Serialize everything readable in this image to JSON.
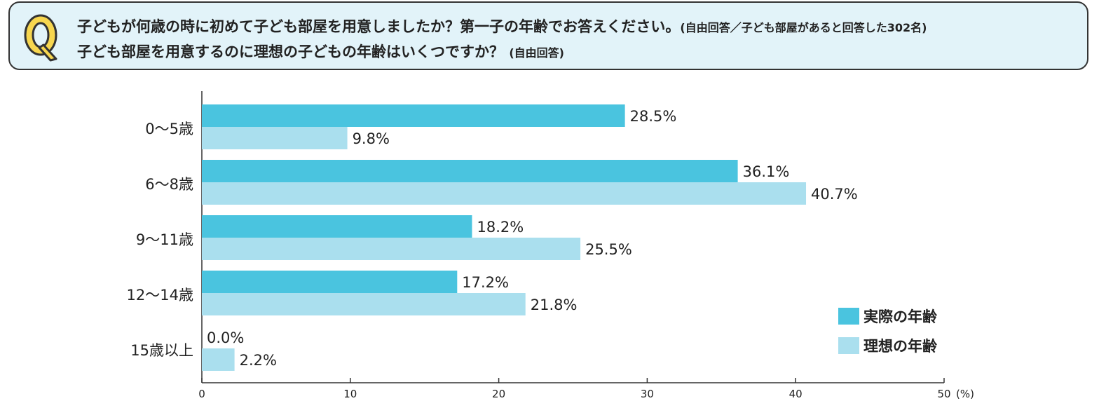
{
  "header": {
    "badge": "Q",
    "question1": "子どもが何歳の時に初めて子ども部屋を用意しましたか？第一子の年齢でお答えください。",
    "question1_note": "(自由回答／子ども部屋があると回答した302名)",
    "question2": "子ども部屋を用意するのに理想の子どもの年齢はいくつですか？",
    "question2_note": "(自由回答)"
  },
  "colors": {
    "actual": "#4ac4df",
    "ideal": "#aadfee",
    "badge_fill": "#f7d64f",
    "badge_stroke": "#333333"
  },
  "chart_data": {
    "type": "bar",
    "orientation": "horizontal",
    "categories": [
      "0〜5歳",
      "6〜8歳",
      "9〜11歳",
      "12〜14歳",
      "15歳以上"
    ],
    "series": [
      {
        "name": "実際の年齢",
        "values": [
          28.5,
          36.1,
          18.2,
          17.2,
          0.0
        ]
      },
      {
        "name": "理想の年齢",
        "values": [
          9.8,
          40.7,
          25.5,
          21.8,
          2.2
        ]
      }
    ],
    "value_labels": [
      [
        "28.5%",
        "36.1%",
        "18.2%",
        "17.2%",
        "0.0%"
      ],
      [
        "9.8%",
        "40.7%",
        "25.5%",
        "21.8%",
        "2.2%"
      ]
    ],
    "xlim": [
      0,
      50
    ],
    "xticks": [
      0,
      10,
      20,
      30,
      40,
      50
    ],
    "xunit": "(%)",
    "grid": false,
    "legend_position": "bottom-right"
  }
}
